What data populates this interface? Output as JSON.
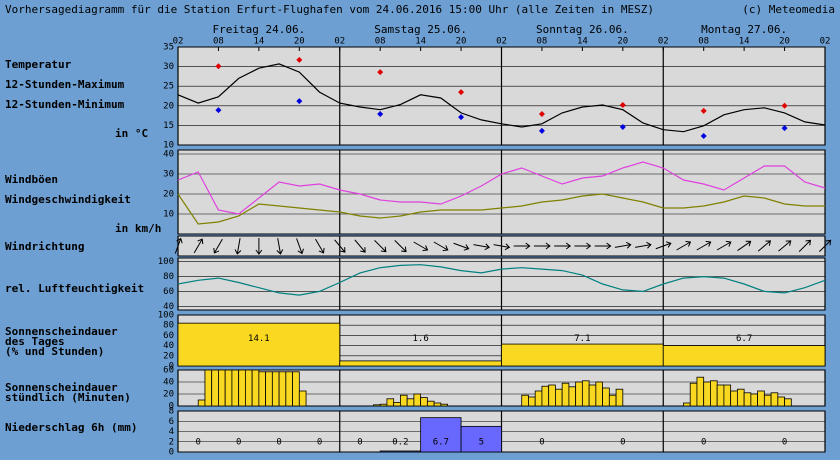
{
  "title": "Vorhersagediagramm für die Station Erfurt-Flughafen vom 24.06.2016 15:00 Uhr (alle Zeiten in MESZ)",
  "credit": "(c) Meteomedia",
  "chart_data": [
    {
      "type": "line",
      "unit": "in °C",
      "days": [
        "Freitag 24.06.",
        "Samstag 25.06.",
        "Sonntag 26.06.",
        "Montag 27.06."
      ],
      "xlim": [
        0,
        96
      ],
      "xticks": [
        {
          "value": 0,
          "label": "02"
        },
        {
          "value": 6,
          "label": "08"
        },
        {
          "value": 12,
          "label": "14"
        },
        {
          "value": 18,
          "label": "20"
        },
        {
          "value": 24,
          "label": "02"
        },
        {
          "value": 30,
          "label": "08"
        },
        {
          "value": 36,
          "label": "14"
        },
        {
          "value": 42,
          "label": "20"
        },
        {
          "value": 48,
          "label": "02"
        },
        {
          "value": 54,
          "label": "08"
        },
        {
          "value": 60,
          "label": "14"
        },
        {
          "value": 66,
          "label": "20"
        },
        {
          "value": 72,
          "label": "02"
        },
        {
          "value": 78,
          "label": "08"
        },
        {
          "value": 84,
          "label": "14"
        },
        {
          "value": 90,
          "label": "20"
        },
        {
          "value": 96,
          "label": "02"
        }
      ],
      "ylim": [
        10,
        35
      ],
      "yticks": [
        10,
        15,
        20,
        25,
        30,
        35
      ],
      "grid": true,
      "series": [
        {
          "name": "Temperatur",
          "color": "#000000",
          "style": "line",
          "x": [
            0,
            3,
            6,
            9,
            12,
            15,
            18,
            21,
            24,
            27,
            30,
            33,
            36,
            39,
            42,
            45,
            48,
            51,
            54,
            57,
            60,
            63,
            66,
            69,
            72,
            75,
            78,
            81,
            84,
            87,
            90,
            93,
            96
          ],
          "values": [
            22.8,
            20.7,
            22.3,
            27,
            29.6,
            30.7,
            28.6,
            23.5,
            20.7,
            19.7,
            19,
            20.3,
            22.8,
            22,
            18.2,
            16.4,
            15.4,
            14.6,
            15.4,
            18.2,
            19.7,
            20.2,
            19,
            15.6,
            13.9,
            13.4,
            14.9,
            17.7,
            19,
            19.5,
            18.2,
            15.9,
            15.1
          ]
        },
        {
          "name": "12-Stunden-Maximum",
          "color": "#e00000",
          "style": "points",
          "x": [
            6,
            18,
            30,
            42,
            54,
            66,
            78,
            90
          ],
          "values": [
            30.1,
            31.7,
            28.6,
            23.5,
            17.9,
            20.2,
            18.7,
            20
          ]
        },
        {
          "name": "12-Stunden-Minimum",
          "color": "#0000e0",
          "style": "points",
          "x": [
            6,
            18,
            30,
            42,
            54,
            66,
            78,
            90
          ],
          "values": [
            18.9,
            21.2,
            17.9,
            17.1,
            13.6,
            14.6,
            12.3,
            14.3
          ]
        }
      ]
    },
    {
      "type": "line",
      "unit": "in km/h",
      "xlim": [
        0,
        96
      ],
      "ylim": [
        0,
        42
      ],
      "yticks": [
        10,
        20,
        30,
        40
      ],
      "grid": true,
      "series": [
        {
          "name": "Windböen",
          "color": "#e040e0",
          "style": "line",
          "x": [
            0,
            3,
            6,
            9,
            12,
            15,
            18,
            21,
            24,
            27,
            30,
            33,
            36,
            39,
            42,
            45,
            48,
            51,
            54,
            57,
            60,
            63,
            66,
            69,
            72,
            75,
            78,
            81,
            84,
            87,
            90,
            93,
            96
          ],
          "values": [
            27,
            31,
            12,
            10,
            18,
            26,
            24,
            25,
            22,
            20,
            17,
            16,
            16,
            15,
            19,
            24,
            30,
            33,
            29,
            25,
            28,
            29,
            33,
            36,
            33,
            27,
            25,
            22,
            28,
            34,
            34,
            26,
            23
          ]
        },
        {
          "name": "Windgeschwindigkeit",
          "color": "#808000",
          "style": "line",
          "x": [
            0,
            3,
            6,
            9,
            12,
            15,
            18,
            21,
            24,
            27,
            30,
            33,
            36,
            39,
            42,
            45,
            48,
            51,
            54,
            57,
            60,
            63,
            66,
            69,
            72,
            75,
            78,
            81,
            84,
            87,
            90,
            93,
            96
          ],
          "values": [
            20,
            5,
            6,
            9,
            15,
            14,
            13,
            12,
            11,
            9,
            8,
            9,
            11,
            12,
            12,
            12,
            13,
            14,
            16,
            17,
            19,
            20,
            18,
            16,
            13,
            13,
            14,
            16,
            19,
            18,
            15,
            14,
            14
          ]
        }
      ]
    },
    {
      "type": "arrows",
      "title": "Windrichtung",
      "xlim": [
        0,
        96
      ],
      "x": [
        0,
        3,
        6,
        9,
        12,
        15,
        18,
        21,
        24,
        27,
        30,
        33,
        36,
        39,
        42,
        45,
        48,
        51,
        54,
        57,
        60,
        63,
        66,
        69,
        72,
        75,
        78,
        81,
        84,
        87,
        90,
        93,
        96
      ],
      "values": [
        200,
        210,
        30,
        10,
        0,
        350,
        340,
        330,
        320,
        320,
        315,
        315,
        300,
        300,
        290,
        280,
        280,
        270,
        270,
        270,
        270,
        270,
        260,
        260,
        250,
        240,
        240,
        240,
        235,
        230,
        230,
        225,
        225
      ]
    },
    {
      "type": "line",
      "xlim": [
        0,
        96
      ],
      "ylim": [
        35,
        105
      ],
      "yticks": [
        40,
        60,
        80,
        100
      ],
      "grid": true,
      "series": [
        {
          "name": "rel. Luftfeuchtigkeit",
          "color": "#008080",
          "style": "line",
          "x": [
            0,
            3,
            6,
            9,
            12,
            15,
            18,
            21,
            24,
            27,
            30,
            33,
            36,
            39,
            42,
            45,
            48,
            51,
            54,
            57,
            60,
            63,
            66,
            69,
            72,
            75,
            78,
            81,
            84,
            87,
            90,
            93,
            96
          ],
          "values": [
            70,
            75,
            78,
            72,
            65,
            58,
            55,
            60,
            72,
            85,
            92,
            95,
            96,
            93,
            88,
            85,
            90,
            92,
            90,
            88,
            82,
            70,
            62,
            60,
            70,
            78,
            80,
            78,
            70,
            60,
            58,
            65,
            75
          ]
        }
      ]
    },
    {
      "type": "histogram",
      "title": [
        "Sonnenscheindauer",
        "des Tages",
        "(% und Stunden)"
      ],
      "label_color": "#f0a000",
      "color": "#f8d820",
      "xlim": [
        0,
        96
      ],
      "ylim": [
        0,
        100
      ],
      "yticks": [
        0,
        20,
        40,
        60,
        80,
        100
      ],
      "grid": true,
      "bins": [
        0,
        24,
        48,
        72,
        96
      ],
      "values": [
        84,
        10,
        43,
        40
      ],
      "hours": [
        14.1,
        1.6,
        7.1,
        6.7
      ]
    },
    {
      "type": "histogram",
      "title": [
        "Sonnenscheindauer",
        "stündlich (Minuten)"
      ],
      "label_color": "#f0a000",
      "color": "#f8d820",
      "xlim": [
        0,
        96
      ],
      "ylim": [
        0,
        60
      ],
      "yticks": [
        0,
        20,
        40,
        60
      ],
      "grid": true,
      "bins": [
        0,
        1,
        2,
        3,
        4,
        5,
        6,
        7,
        8,
        9,
        10,
        11,
        12,
        13,
        14,
        15,
        16,
        17,
        18,
        19,
        20,
        21,
        22,
        23,
        24,
        25,
        26,
        27,
        28,
        29,
        30,
        31,
        32,
        33,
        34,
        35,
        36,
        37,
        38,
        39,
        40,
        41,
        42,
        43,
        44,
        45,
        46,
        47,
        48,
        49,
        50,
        51,
        52,
        53,
        54,
        55,
        56,
        57,
        58,
        59,
        60,
        61,
        62,
        63,
        64,
        65,
        66,
        67,
        68,
        69,
        70,
        71,
        72,
        73,
        74,
        75,
        76,
        77,
        78,
        79,
        80,
        81,
        82,
        83,
        84,
        85,
        86,
        87,
        88,
        89,
        90,
        91,
        92,
        93,
        94,
        95,
        96
      ],
      "values": [
        0,
        0,
        0,
        10,
        60,
        60,
        60,
        60,
        60,
        60,
        60,
        60,
        57,
        57,
        57,
        57,
        57,
        57,
        25,
        0,
        0,
        0,
        0,
        0,
        0,
        0,
        0,
        0,
        0,
        2,
        3,
        12,
        6,
        18,
        12,
        20,
        14,
        8,
        5,
        3,
        0,
        0,
        0,
        0,
        0,
        0,
        0,
        0,
        0,
        0,
        0,
        18,
        15,
        25,
        33,
        35,
        28,
        38,
        32,
        40,
        42,
        35,
        40,
        30,
        18,
        28,
        0,
        0,
        0,
        0,
        0,
        0,
        0,
        0,
        0,
        5,
        38,
        48,
        40,
        42,
        35,
        35,
        25,
        28,
        22,
        20,
        25,
        18,
        22,
        15,
        12,
        0,
        0,
        0,
        0,
        0
      ]
    },
    {
      "type": "histogram",
      "title": "Niederschlag 6h (mm)",
      "label_color": "#0000e0",
      "show_values": true,
      "color": "#6868ff",
      "xlim": [
        0,
        96
      ],
      "ylim": [
        0,
        8
      ],
      "yticks": [
        0,
        2,
        4,
        6,
        8
      ],
      "grid": true,
      "bins": [
        0,
        6,
        12,
        18,
        24,
        30,
        36,
        42,
        48,
        60,
        72,
        84,
        96
      ],
      "values": [
        0,
        0,
        0,
        0,
        0,
        0.2,
        6.7,
        5,
        0,
        0,
        0,
        0
      ]
    }
  ]
}
